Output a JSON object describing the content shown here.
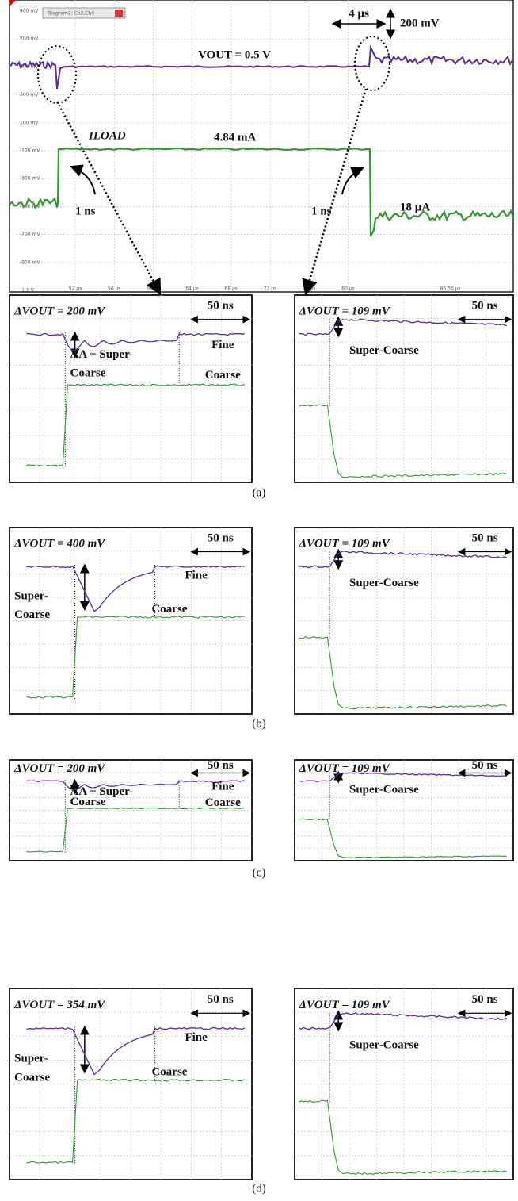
{
  "top_panel": {
    "tab": "Diagram2: Ch2,Ch3",
    "y_labels": [
      "900 mV",
      "700 mV",
      "500 mV",
      "300 mV",
      "100 mV",
      "-100 mV",
      "-300 mV",
      "-500 mV",
      "-700 mV",
      "-900 mV",
      "-1.1 V"
    ],
    "x_labels": [
      "52 µs",
      "56 µs",
      "60 µs",
      "64 µs",
      "68 µs",
      "72 µs",
      "76 µs",
      "80 µs",
      "86.36 µs"
    ],
    "vout": "VOUT = 0.5 V",
    "iload": "ILOAD",
    "iload_high": "4.84 mA",
    "time_scale": "4 µs",
    "volt_scale": "200 mV",
    "rise": "1 ns",
    "fall": "1 ns",
    "iload_low": "18 µA"
  },
  "rows": [
    {
      "caption": "(a)",
      "left": {
        "delta": "ΔVOUT = 200 mV",
        "scale": "50 ns",
        "labels": [
          "Fine",
          "AA + Super-",
          "Coarse",
          "Coarse"
        ]
      },
      "right": {
        "delta": "ΔVOUT = 109 mV",
        "scale": "50 ns",
        "label": "Super-Coarse"
      }
    },
    {
      "caption": "(b)",
      "left": {
        "delta": "ΔVOUT = 400 mV",
        "scale": "50 ns",
        "labels": [
          "Fine",
          "Super-",
          "Coarse",
          "Coarse"
        ]
      },
      "right": {
        "delta": "ΔVOUT = 109 mV",
        "scale": "50 ns",
        "label": "Super-Coarse"
      }
    },
    {
      "caption": "(c)",
      "left": {
        "delta": "ΔVOUT = 200 mV",
        "scale": "50 ns",
        "labels": [
          "Fine",
          "AA + Super-",
          "Coarse",
          "Coarse"
        ]
      },
      "right": {
        "delta": "ΔVOUT = 109 mV",
        "scale": "50 ns",
        "label": "Super-Coarse"
      }
    },
    {
      "caption": "(d)",
      "left": {
        "delta": "ΔVOUT = 354 mV",
        "scale": "50 ns",
        "labels": [
          "Fine",
          "Super-",
          "Coarse",
          "Coarse"
        ]
      },
      "right": {
        "delta": "ΔVOUT = 109 mV",
        "scale": "50 ns",
        "label": "Super-Coarse"
      }
    }
  ]
}
